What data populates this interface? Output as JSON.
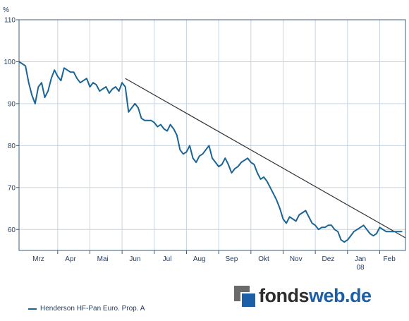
{
  "chart_data": {
    "type": "line",
    "unit_label": "%",
    "ylim": [
      55,
      110
    ],
    "yticks": [
      60,
      70,
      80,
      90,
      100,
      110
    ],
    "xlim": [
      0,
      12
    ],
    "month_labels": [
      {
        "x": 0.6,
        "label": "Mrz"
      },
      {
        "x": 1.6,
        "label": "Apr"
      },
      {
        "x": 2.6,
        "label": "Mai"
      },
      {
        "x": 3.6,
        "label": "Jun"
      },
      {
        "x": 4.6,
        "label": "Jul"
      },
      {
        "x": 5.6,
        "label": "Aug"
      },
      {
        "x": 6.6,
        "label": "Sep"
      },
      {
        "x": 7.6,
        "label": "Okt"
      },
      {
        "x": 8.6,
        "label": "Nov"
      },
      {
        "x": 9.6,
        "label": "Dez"
      },
      {
        "x": 10.6,
        "label": "Jan"
      },
      {
        "x": 11.5,
        "label": "Feb"
      }
    ],
    "year_label": {
      "x": 10.6,
      "label": "08"
    },
    "month_dividers": [
      1.2,
      2.2,
      3.2,
      4.2,
      5.2,
      6.2,
      7.2,
      8.2,
      9.2,
      10.2,
      11.2
    ],
    "grid": true,
    "series": [
      {
        "name": "Henderson HF-Pan Euro. Prop. A",
        "color": "#1a6496",
        "x": [
          0,
          0.1,
          0.2,
          0.3,
          0.4,
          0.5,
          0.6,
          0.7,
          0.8,
          0.9,
          1.0,
          1.1,
          1.2,
          1.3,
          1.4,
          1.5,
          1.6,
          1.7,
          1.8,
          1.9,
          2.0,
          2.1,
          2.2,
          2.3,
          2.4,
          2.5,
          2.6,
          2.7,
          2.8,
          2.9,
          3.0,
          3.1,
          3.2,
          3.3,
          3.4,
          3.5,
          3.6,
          3.7,
          3.8,
          3.9,
          4.0,
          4.1,
          4.2,
          4.3,
          4.4,
          4.5,
          4.6,
          4.7,
          4.8,
          4.9,
          5.0,
          5.1,
          5.2,
          5.3,
          5.4,
          5.5,
          5.6,
          5.7,
          5.8,
          5.9,
          6.0,
          6.1,
          6.2,
          6.3,
          6.4,
          6.5,
          6.6,
          6.7,
          6.8,
          6.9,
          7.0,
          7.1,
          7.2,
          7.3,
          7.4,
          7.5,
          7.6,
          7.7,
          7.8,
          7.9,
          8.0,
          8.1,
          8.2,
          8.3,
          8.4,
          8.5,
          8.6,
          8.7,
          8.8,
          8.9,
          9.0,
          9.1,
          9.2,
          9.3,
          9.4,
          9.5,
          9.6,
          9.7,
          9.8,
          9.9,
          10.0,
          10.1,
          10.2,
          10.3,
          10.4,
          10.5,
          10.6,
          10.7,
          10.8,
          10.9,
          11.0,
          11.1,
          11.2,
          11.3,
          11.4,
          11.5,
          11.6,
          11.7,
          11.8,
          11.9
        ],
        "values": [
          100,
          99.5,
          99,
          95,
          92,
          90,
          94,
          95,
          91.5,
          93,
          96,
          98,
          96.5,
          95.5,
          98.5,
          98,
          97.5,
          97.5,
          96,
          95,
          95.5,
          96,
          94,
          95,
          94.5,
          93,
          93.5,
          94,
          92.5,
          93.5,
          94,
          93,
          95,
          94,
          88,
          89,
          90,
          89,
          86.5,
          86,
          86,
          86,
          85.5,
          84.5,
          85,
          84,
          83.5,
          85,
          84,
          82.5,
          79,
          78,
          78.5,
          80,
          77,
          76,
          77.5,
          78,
          79,
          80,
          77,
          76,
          75,
          75.5,
          77,
          75.5,
          73.5,
          74.5,
          75,
          76,
          76.5,
          77,
          76,
          75.5,
          73.5,
          72,
          72.5,
          71.5,
          70,
          68.5,
          67,
          65,
          62.5,
          61.5,
          63,
          62.5,
          62,
          63.5,
          64,
          64.5,
          63,
          61.5,
          61,
          60,
          60.5,
          60.5,
          61,
          61,
          60,
          59.5,
          57.5,
          57,
          57.5,
          58.5,
          59.5,
          60,
          60.5,
          61,
          60,
          59,
          58.5,
          59,
          60.5,
          60,
          59.5,
          59.5,
          59.5,
          59.5,
          59.5,
          59.5
        ]
      }
    ],
    "trendline": {
      "x": [
        3.3,
        12.0
      ],
      "y": [
        96,
        58
      ]
    }
  },
  "legend": {
    "label": "Henderson HF-Pan Euro. Prop. A"
  },
  "logo": {
    "part1": "fonds",
    "part2": "web.de"
  }
}
